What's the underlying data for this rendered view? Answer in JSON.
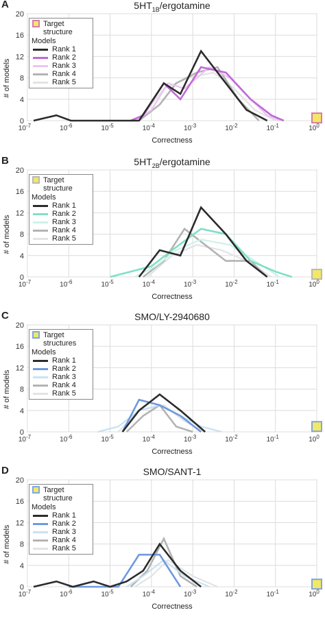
{
  "x_ticks": [
    "10-7",
    "10-6",
    "10-5",
    "10-4",
    "10-3",
    "10-2",
    "10-1",
    "100"
  ],
  "y_ticks": [
    0,
    4,
    8,
    12,
    16,
    20
  ],
  "chart_data": [
    {
      "type": "line",
      "panel": "A",
      "title_main": "5HT",
      "title_sub": "1B",
      "title_rest": "/ergotamine",
      "xlabel": "Correctness",
      "ylabel": "# of models",
      "xscale": "log",
      "xlim": [
        -7,
        0
      ],
      "ylim": [
        0,
        20
      ],
      "grid": true,
      "legend_placement": "top-left",
      "legend_target": "Target structure",
      "legend_models": "Models",
      "target": {
        "x": 0,
        "y": 0.5,
        "fill": "#f3e766",
        "stroke": "#d77ba8"
      },
      "series": [
        {
          "name": "Rank 1",
          "color": "#2b2b2b",
          "width": 2.6,
          "points": [
            [
              -6.85,
              0
            ],
            [
              -6.3,
              1
            ],
            [
              -5.95,
              0
            ],
            [
              -4.3,
              0
            ],
            [
              -3.7,
              7
            ],
            [
              -3.3,
              5
            ],
            [
              -2.8,
              13
            ],
            [
              -2.2,
              7
            ],
            [
              -1.7,
              2
            ],
            [
              -1.2,
              0
            ]
          ]
        },
        {
          "name": "Rank 2",
          "color": "#c169d8",
          "width": 2.6,
          "points": [
            [
              -4.5,
              0
            ],
            [
              -4.2,
              1
            ],
            [
              -3.7,
              7
            ],
            [
              -3.3,
              4
            ],
            [
              -2.8,
              10
            ],
            [
              -2.2,
              9
            ],
            [
              -1.6,
              4
            ],
            [
              -1.1,
              1
            ],
            [
              -0.8,
              0
            ]
          ]
        },
        {
          "name": "Rank 3",
          "color": "#e9c5f1",
          "width": 2.2,
          "points": [
            [
              -4.4,
              0
            ],
            [
              -4.0,
              2
            ],
            [
              -3.6,
              7
            ],
            [
              -3.2,
              6
            ],
            [
              -2.6,
              10
            ],
            [
              -2.1,
              8
            ],
            [
              -1.6,
              4
            ],
            [
              -1.2,
              1
            ],
            [
              -0.9,
              0
            ]
          ]
        },
        {
          "name": "Rank 4",
          "color": "#b3b3b3",
          "width": 2.6,
          "points": [
            [
              -4.3,
              0
            ],
            [
              -3.8,
              3
            ],
            [
              -3.4,
              7
            ],
            [
              -2.9,
              9
            ],
            [
              -2.4,
              10
            ],
            [
              -1.9,
              4
            ],
            [
              -1.4,
              0
            ]
          ]
        },
        {
          "name": "Rank 5",
          "color": "#e3e3e3",
          "width": 2.2,
          "points": [
            [
              -4.3,
              0
            ],
            [
              -3.7,
              6
            ],
            [
              -3.1,
              8
            ],
            [
              -2.5,
              9
            ],
            [
              -2.0,
              6
            ],
            [
              -1.5,
              2
            ],
            [
              -1.0,
              0
            ]
          ]
        }
      ]
    },
    {
      "type": "line",
      "panel": "B",
      "title_main": "5HT",
      "title_sub": "2B",
      "title_rest": "/ergotamine",
      "xlabel": "Correctness",
      "ylabel": "# of models",
      "xscale": "log",
      "xlim": [
        -7,
        0
      ],
      "ylim": [
        0,
        20
      ],
      "grid": true,
      "legend_placement": "top-left",
      "legend_target": "Target structure",
      "legend_models": "Models",
      "target": {
        "x": 0,
        "y": 0.5,
        "fill": "#f3e766",
        "stroke": "#b8b8b8"
      },
      "series": [
        {
          "name": "Rank 1",
          "color": "#2b2b2b",
          "width": 2.6,
          "points": [
            [
              -4.3,
              0
            ],
            [
              -3.8,
              5
            ],
            [
              -3.3,
              4
            ],
            [
              -2.8,
              13
            ],
            [
              -2.2,
              8
            ],
            [
              -1.7,
              3
            ],
            [
              -1.2,
              0
            ]
          ]
        },
        {
          "name": "Rank 2",
          "color": "#7fe0c6",
          "width": 2.6,
          "points": [
            [
              -5.0,
              0
            ],
            [
              -4.5,
              1
            ],
            [
              -4.0,
              2
            ],
            [
              -3.5,
              5
            ],
            [
              -2.8,
              9
            ],
            [
              -2.2,
              8
            ],
            [
              -1.6,
              3
            ],
            [
              -1.0,
              1
            ],
            [
              -0.6,
              0
            ]
          ]
        },
        {
          "name": "Rank 3",
          "color": "#cdf2ea",
          "width": 2.2,
          "points": [
            [
              -4.4,
              0
            ],
            [
              -3.9,
              2
            ],
            [
              -3.4,
              5
            ],
            [
              -2.8,
              7
            ],
            [
              -2.1,
              6
            ],
            [
              -1.5,
              3
            ],
            [
              -0.9,
              0
            ]
          ]
        },
        {
          "name": "Rank 4",
          "color": "#b3b3b3",
          "width": 2.6,
          "points": [
            [
              -4.2,
              0
            ],
            [
              -3.7,
              3
            ],
            [
              -3.2,
              9
            ],
            [
              -2.7,
              6
            ],
            [
              -2.2,
              3
            ],
            [
              -1.6,
              3
            ],
            [
              -1.2,
              0
            ]
          ]
        },
        {
          "name": "Rank 5",
          "color": "#e3e3e3",
          "width": 2.2,
          "points": [
            [
              -4.1,
              0
            ],
            [
              -3.5,
              4
            ],
            [
              -2.9,
              6
            ],
            [
              -2.3,
              5
            ],
            [
              -1.7,
              3
            ],
            [
              -1.1,
              0
            ]
          ]
        }
      ]
    },
    {
      "type": "line",
      "panel": "C",
      "title_main": "SMO/LY-2940680",
      "title_sub": "",
      "title_rest": "",
      "xlabel": "Correctness",
      "ylabel": "# of models",
      "xscale": "log",
      "xlim": [
        -7,
        0
      ],
      "ylim": [
        0,
        20
      ],
      "grid": true,
      "legend_placement": "top-left",
      "legend_target": "Target structures",
      "legend_models": "Models",
      "target": {
        "x": 0,
        "y": 1,
        "fill": "#f3e766",
        "stroke": "#7ea6e0"
      },
      "series": [
        {
          "name": "Rank 1",
          "color": "#2b2b2b",
          "width": 2.6,
          "points": [
            [
              -4.7,
              0
            ],
            [
              -4.3,
              4
            ],
            [
              -3.8,
              7
            ],
            [
              -3.3,
              4
            ],
            [
              -2.7,
              0
            ]
          ]
        },
        {
          "name": "Rank 2",
          "color": "#6e99e0",
          "width": 2.6,
          "points": [
            [
              -4.7,
              0
            ],
            [
              -4.3,
              6
            ],
            [
              -3.8,
              5
            ],
            [
              -3.3,
              3
            ],
            [
              -2.8,
              0
            ]
          ]
        },
        {
          "name": "Rank 3",
          "color": "#c8e2f3",
          "width": 2.2,
          "points": [
            [
              -5.3,
              0
            ],
            [
              -4.8,
              1
            ],
            [
              -4.3,
              4
            ],
            [
              -3.8,
              5
            ],
            [
              -3.3,
              3
            ],
            [
              -2.8,
              1
            ],
            [
              -2.3,
              0
            ]
          ]
        },
        {
          "name": "Rank 4",
          "color": "#b3b3b3",
          "width": 2.6,
          "points": [
            [
              -4.6,
              0
            ],
            [
              -4.2,
              3
            ],
            [
              -3.8,
              5
            ],
            [
              -3.4,
              1
            ],
            [
              -3.0,
              0
            ]
          ]
        },
        {
          "name": "Rank 5",
          "color": "#e3e3e3",
          "width": 2.2,
          "points": [
            [
              -4.8,
              0
            ],
            [
              -4.3,
              4
            ],
            [
              -3.7,
              5
            ],
            [
              -3.2,
              2
            ],
            [
              -2.7,
              0
            ]
          ]
        }
      ]
    },
    {
      "type": "line",
      "panel": "D",
      "title_main": "SMO/SANT-1",
      "title_sub": "",
      "title_rest": "",
      "xlabel": "Correctness",
      "ylabel": "# of models",
      "xscale": "log",
      "xlim": [
        -7,
        0
      ],
      "ylim": [
        0,
        20
      ],
      "grid": true,
      "legend_placement": "top-left",
      "legend_target": "Target structure",
      "legend_models": "Models",
      "target": {
        "x": 0,
        "y": 0.5,
        "fill": "#f3e766",
        "stroke": "#7ea6e0"
      },
      "series": [
        {
          "name": "Rank 1",
          "color": "#2b2b2b",
          "width": 2.6,
          "points": [
            [
              -6.85,
              0
            ],
            [
              -6.3,
              1
            ],
            [
              -5.9,
              0
            ],
            [
              -5.4,
              1
            ],
            [
              -5.0,
              0
            ],
            [
              -4.6,
              1
            ],
            [
              -4.2,
              3
            ],
            [
              -3.8,
              8
            ],
            [
              -3.3,
              3
            ],
            [
              -2.8,
              0
            ]
          ]
        },
        {
          "name": "Rank 2",
          "color": "#6e99e0",
          "width": 2.6,
          "points": [
            [
              -6.0,
              0
            ],
            [
              -5.4,
              0
            ],
            [
              -4.8,
              0
            ],
            [
              -4.3,
              6
            ],
            [
              -3.8,
              6
            ],
            [
              -3.3,
              0
            ]
          ]
        },
        {
          "name": "Rank 3",
          "color": "#c8e2f3",
          "width": 2.2,
          "points": [
            [
              -4.6,
              0
            ],
            [
              -4.2,
              2
            ],
            [
              -3.7,
              5
            ],
            [
              -3.2,
              2
            ],
            [
              -2.6,
              0
            ]
          ]
        },
        {
          "name": "Rank 4",
          "color": "#b3b3b3",
          "width": 2.6,
          "points": [
            [
              -4.5,
              0
            ],
            [
              -4.1,
              3
            ],
            [
              -3.7,
              9
            ],
            [
              -3.3,
              2
            ],
            [
              -2.9,
              0
            ]
          ]
        },
        {
          "name": "Rank 5",
          "color": "#e3e3e3",
          "width": 2.2,
          "points": [
            [
              -4.4,
              0
            ],
            [
              -4.0,
              2
            ],
            [
              -3.6,
              5
            ],
            [
              -3.0,
              2
            ],
            [
              -2.4,
              0
            ]
          ]
        }
      ]
    }
  ]
}
